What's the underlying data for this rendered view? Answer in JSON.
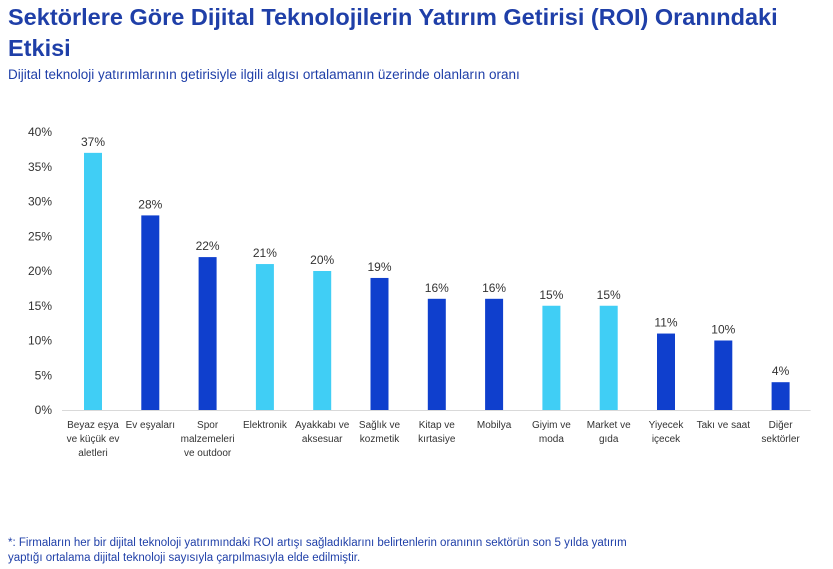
{
  "title": "Sektörlere Göre Dijital Teknolojilerin Yatırım Getirisi (ROI) Oranındaki Etkisi",
  "subtitle": "Dijital teknoloji yatırımlarının getirisiyle ilgili algısı ortalamanın üzerinde olanların oranı",
  "footnote": "*: Firmaların her bir dijital teknoloji yatırımındaki ROI artışı sağladıklarını belirtenlerin oranının sektörün son 5 yılda yatırım yaptığı ortalama dijital teknoloji sayısıyla çarpılmasıyla elde edilmiştir.",
  "colors": {
    "title": "#1f3fa8",
    "light": "#40cef5",
    "dark": "#0f3fcd",
    "axis": "#333333",
    "grid": "#d9d9d9"
  },
  "chart_data": {
    "type": "bar",
    "title": "Sektörlere Göre Dijital Teknolojilerin Yatırım Getirisi (ROI) Oranındaki Etkisi",
    "xlabel": "",
    "ylabel": "",
    "ylim": [
      0,
      40
    ],
    "yticks": [
      "0%",
      "5%",
      "10%",
      "15%",
      "20%",
      "25%",
      "30%",
      "35%",
      "40%"
    ],
    "grid": false,
    "categories": [
      [
        "Beyaz eşya",
        "ve küçük ev",
        "aletleri"
      ],
      [
        "Ev eşyaları"
      ],
      [
        "Spor",
        "malzemeleri",
        "ve outdoor"
      ],
      [
        "Elektronik"
      ],
      [
        "Ayakkabı ve",
        "aksesuar"
      ],
      [
        "Sağlık ve",
        "kozmetik"
      ],
      [
        "Kitap ve",
        "kırtasiye"
      ],
      [
        "Mobilya"
      ],
      [
        "Giyim ve",
        "moda"
      ],
      [
        "Market ve",
        "gıda"
      ],
      [
        "Yiyecek",
        "içecek"
      ],
      [
        "Takı ve saat"
      ],
      [
        "Diğer",
        "sektörler"
      ]
    ],
    "values": [
      37,
      28,
      22,
      21,
      20,
      19,
      16,
      16,
      15,
      15,
      11,
      10,
      4
    ],
    "value_labels": [
      "37%",
      "28%",
      "22%",
      "21%",
      "20%",
      "19%",
      "16%",
      "16%",
      "15%",
      "15%",
      "11%",
      "10%",
      "4%"
    ],
    "bar_colors": [
      "light",
      "dark",
      "dark",
      "light",
      "light",
      "dark",
      "dark",
      "dark",
      "light",
      "light",
      "dark",
      "dark",
      "dark"
    ]
  }
}
